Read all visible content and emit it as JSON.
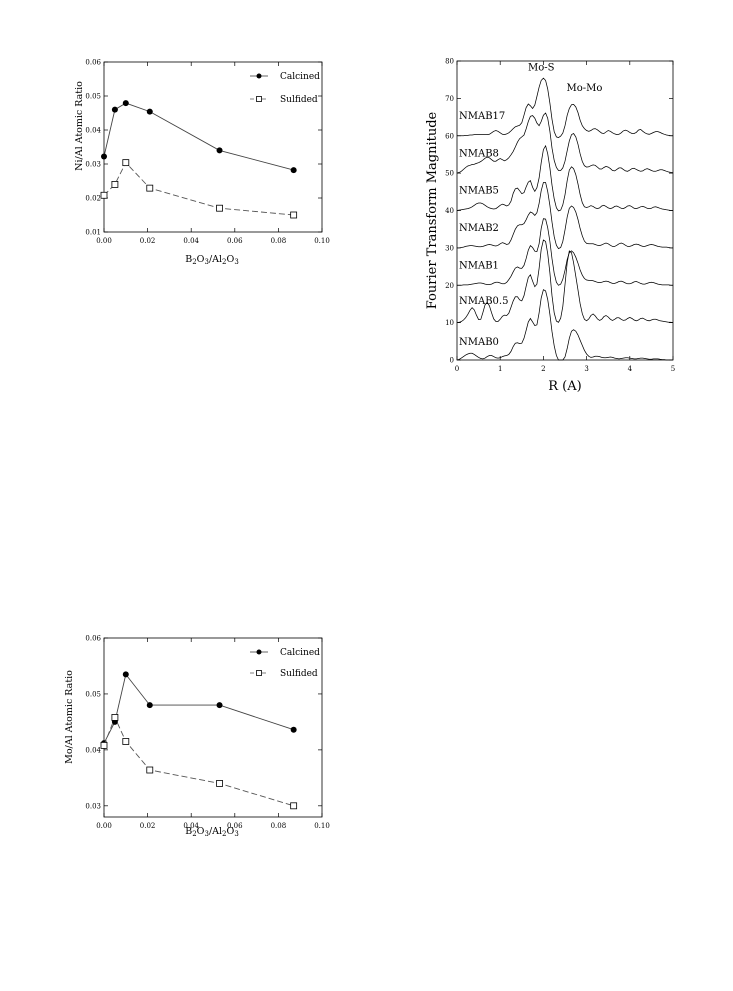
{
  "chart_data": [
    {
      "type": "line",
      "ylabel": "Ni/Al Atomic Ratio",
      "xlabel": {
        "main": "B",
        "sub1": "2",
        "mid1": "O",
        "sub2": "3",
        "mid2": "/Al",
        "sub3": "2",
        "mid3": "O",
        "sub4": "3"
      },
      "xlim": [
        0,
        0.1
      ],
      "ylim": [
        0.01,
        0.06
      ],
      "xticks": [
        "0.00",
        "0.02",
        "0.04",
        "0.06",
        "0.08",
        "0.10"
      ],
      "yticks": [
        "0.01",
        "0.02",
        "0.03",
        "0.04",
        "0.05",
        "0.06"
      ],
      "xtick_values": [
        0,
        0.02,
        0.04,
        0.06,
        0.08,
        0.1
      ],
      "ytick_values": [
        0.01,
        0.02,
        0.03,
        0.04,
        0.05,
        0.06
      ],
      "legend_position": "top-right",
      "series": [
        {
          "name": "Calcined",
          "marker": "filled-circle",
          "line": "solid",
          "x": [
            0.0,
            0.005,
            0.01,
            0.021,
            0.053,
            0.087
          ],
          "y": [
            0.0322,
            0.046,
            0.0479,
            0.0454,
            0.034,
            0.0282
          ]
        },
        {
          "name": "Sulfided",
          "marker": "open-square",
          "line": "dashed",
          "x": [
            0.0,
            0.005,
            0.01,
            0.021,
            0.053,
            0.087
          ],
          "y": [
            0.0208,
            0.024,
            0.0304,
            0.0229,
            0.017,
            0.015
          ]
        }
      ]
    },
    {
      "type": "line",
      "ylabel": "Fourier Transform Magnitude",
      "xlabel": "R (A)",
      "xlim": [
        0,
        5
      ],
      "ylim": [
        0,
        80
      ],
      "xticks": [
        "0",
        "1",
        "2",
        "3",
        "4",
        "5"
      ],
      "yticks": [
        "0",
        "10",
        "20",
        "30",
        "40",
        "50",
        "60",
        "70",
        "80"
      ],
      "xtick_values": [
        0,
        1,
        2,
        3,
        4,
        5
      ],
      "ytick_values": [
        0,
        10,
        20,
        30,
        40,
        50,
        60,
        70,
        80
      ],
      "annotations": [
        {
          "text": "Mo-S",
          "x": 1.95,
          "y": 77.5
        },
        {
          "text": "Mo-Mo",
          "x": 2.95,
          "y": 72
        }
      ],
      "x_sampling": {
        "start": 0,
        "end": 5,
        "step": 0.05
      },
      "series": [
        {
          "name": "NMAB17",
          "baseline": 60,
          "label_y": 64.5,
          "values": [
            60,
            60,
            60,
            60,
            60.1,
            60.1,
            60.2,
            60.2,
            60.3,
            60.3,
            60.3,
            60.3,
            60.3,
            60.3,
            60.3,
            60.4,
            60.8,
            61.2,
            61.4,
            61.2,
            60.8,
            60.4,
            60.3,
            60.5,
            60.8,
            61.3,
            61.9,
            62.4,
            62.6,
            62.8,
            63.5,
            65.5,
            67.5,
            68.5,
            68,
            67.3,
            68.2,
            70.5,
            73,
            74.8,
            75.4,
            74.8,
            72.5,
            68.7,
            64.4,
            61.1,
            59.7,
            59.5,
            59.9,
            60.7,
            62.7,
            65.5,
            67.3,
            68.3,
            68.4,
            67.7,
            66.2,
            64.2,
            62.7,
            61.9,
            61.4,
            61.2,
            61.4,
            61.8,
            61.9,
            61.6,
            61.1,
            60.7,
            60.6,
            61,
            61.4,
            61.2,
            60.8,
            60.5,
            60.3,
            60.4,
            60.8,
            61.3,
            61.5,
            61.3,
            60.9,
            60.6,
            60.6,
            60.9,
            61.5,
            61.7,
            61.2,
            60.8,
            60.5,
            60.4,
            60.6,
            60.9,
            61.1,
            61.1,
            60.9,
            60.6,
            60.4,
            60.2,
            60.1,
            60,
            60
          ]
        },
        {
          "name": "NMAB8",
          "baseline": 50,
          "label_y": 54.5,
          "values": [
            50,
            50.2,
            50.5,
            51,
            51.5,
            51.9,
            52.1,
            52.3,
            52.4,
            52.6,
            52.8,
            53.1,
            53.5,
            54,
            54.3,
            54.1,
            53.6,
            53.2,
            53.2,
            53.6,
            53.9,
            53.6,
            53.3,
            53.6,
            54.1,
            54.9,
            55.8,
            57,
            58.3,
            59.2,
            59.7,
            60.2,
            61.8,
            63.8,
            65.2,
            65.4,
            64.7,
            63.4,
            62.7,
            63.8,
            65.5,
            66.1,
            64.7,
            61.2,
            56.7,
            53.4,
            51.5,
            50.7,
            50.7,
            51.4,
            53.2,
            56,
            58.6,
            60.3,
            60.6,
            59.7,
            57.7,
            55.2,
            53.1,
            52,
            51.6,
            51.7,
            52,
            52.2,
            52.1,
            51.6,
            51.1,
            51.1,
            51.5,
            51.8,
            51.6,
            51.2,
            50.7,
            50.6,
            51,
            51.4,
            51.4,
            51,
            50.6,
            50.5,
            50.8,
            51.2,
            51.3,
            51,
            50.7,
            50.5,
            50.6,
            51,
            51.2,
            51,
            50.7,
            50.5,
            50.5,
            50.7,
            50.9,
            50.9,
            50.7,
            50.5,
            50.3,
            50.2,
            50.1
          ]
        },
        {
          "name": "NMAB5",
          "baseline": 40,
          "label_y": 44.5,
          "values": [
            40,
            40.1,
            40.2,
            40.3,
            40.4,
            40.5,
            40.7,
            41,
            41.4,
            41.8,
            42,
            42,
            41.8,
            41.4,
            41,
            40.7,
            40.5,
            40.4,
            40.5,
            40.9,
            41.4,
            41.7,
            41.5,
            41.2,
            41.5,
            42.5,
            44.6,
            45.8,
            46,
            45.3,
            44.5,
            44.8,
            46.3,
            47.6,
            48,
            46.2,
            45.1,
            46.1,
            48.7,
            52.8,
            56.3,
            57.3,
            55.2,
            51.4,
            46.8,
            43.1,
            40.7,
            39.9,
            40.1,
            41.5,
            44.2,
            48,
            50.8,
            51.7,
            51.2,
            49.6,
            47.1,
            44.3,
            42.1,
            41,
            40.8,
            41,
            41.3,
            41.1,
            40.7,
            40.5,
            40.7,
            41.2,
            41.4,
            41.1,
            40.7,
            40.5,
            40.7,
            41.1,
            41.2,
            40.9,
            40.6,
            40.5,
            40.8,
            41.2,
            41.3,
            41,
            40.6,
            40.5,
            40.7,
            41,
            41.1,
            40.9,
            40.6,
            40.5,
            40.6,
            40.9,
            41,
            40.8,
            40.6,
            40.4,
            40.3,
            40.2,
            40.1,
            40,
            40
          ]
        },
        {
          "name": "NMAB2",
          "baseline": 30,
          "label_y": 34.5,
          "values": [
            30,
            30,
            30.1,
            30.2,
            30.4,
            30.5,
            30.6,
            30.6,
            30.5,
            30.4,
            30.3,
            30.3,
            30.4,
            30.6,
            30.8,
            30.9,
            30.8,
            30.6,
            30.5,
            30.7,
            31.1,
            31.4,
            31.2,
            30.9,
            31.1,
            32.1,
            33.6,
            35,
            35.9,
            36.2,
            36.2,
            36.5,
            37.5,
            38.8,
            39.6,
            39.3,
            38.7,
            39.4,
            41.9,
            45.3,
            47.5,
            47.5,
            45.1,
            41.3,
            36.9,
            33,
            30.7,
            29.8,
            30.1,
            31.7,
            34.8,
            38.3,
            40.6,
            41.2,
            40.8,
            39.6,
            37.6,
            35.2,
            33.2,
            31.8,
            31.2,
            31.1,
            31.1,
            31.1,
            30.9,
            30.7,
            30.6,
            30.8,
            31.1,
            31.3,
            31.1,
            30.7,
            30.4,
            30.4,
            30.7,
            31.1,
            31.3,
            31.1,
            30.7,
            30.4,
            30.4,
            30.6,
            30.9,
            31,
            30.9,
            30.6,
            30.4,
            30.4,
            30.6,
            30.8,
            30.9,
            30.8,
            30.6,
            30.4,
            30.3,
            30.2,
            30.2,
            30.2,
            30.1,
            30,
            30
          ]
        },
        {
          "name": "NMAB1",
          "baseline": 20,
          "label_y": 24.5,
          "values": [
            20,
            20,
            20,
            20.1,
            20.1,
            20.1,
            20.2,
            20.3,
            20.4,
            20.5,
            20.6,
            20.6,
            20.5,
            20.3,
            20.2,
            20.2,
            20.3,
            20.6,
            20.8,
            20.8,
            20.6,
            20.4,
            20.4,
            20.8,
            21.5,
            22.4,
            23.6,
            24.6,
            24.9,
            24.6,
            24.5,
            25.3,
            27.1,
            29.4,
            30.6,
            30.1,
            29.1,
            29,
            31.1,
            35.2,
            37.8,
            37.7,
            35.4,
            31.7,
            27.1,
            23.2,
            20.8,
            20,
            20.3,
            21.6,
            24,
            26.9,
            28.7,
            29.2,
            28.7,
            27.5,
            25.9,
            24.1,
            22.7,
            21.8,
            21.4,
            21.3,
            21.3,
            21.2,
            21,
            20.8,
            20.7,
            20.8,
            21,
            21.1,
            21,
            20.7,
            20.5,
            20.5,
            20.7,
            21,
            21.1,
            20.9,
            20.6,
            20.4,
            20.4,
            20.6,
            20.9,
            21,
            20.8,
            20.5,
            20.3,
            20.3,
            20.5,
            20.7,
            20.8,
            20.7,
            20.5,
            20.3,
            20.2,
            20.1,
            20.1,
            20.1,
            20.1,
            20,
            20
          ]
        },
        {
          "name": "NMAB0.5",
          "baseline": 10,
          "label_y": 15,
          "values": [
            10,
            10.1,
            10.3,
            10.7,
            11.3,
            12.2,
            13.3,
            14,
            13.4,
            12,
            10.8,
            10.9,
            12.7,
            14.8,
            15.4,
            14.5,
            12.6,
            11,
            10.3,
            10.3,
            10.9,
            11.7,
            12,
            11.9,
            12.5,
            14.1,
            15.8,
            16.9,
            16.9,
            16.1,
            15.8,
            17.2,
            19.7,
            22.1,
            22.8,
            21.1,
            19.6,
            20.3,
            24.5,
            29.6,
            32.1,
            31.7,
            28.5,
            23.3,
            17.2,
            12.6,
            10.4,
            10.1,
            11.2,
            14.3,
            20.2,
            26.1,
            29.2,
            28.7,
            26,
            22.4,
            18.7,
            15.1,
            12.4,
            10.9,
            10.5,
            11,
            11.9,
            12.3,
            11.8,
            11,
            10.6,
            10.9,
            11.6,
            11.9,
            11.5,
            10.9,
            10.6,
            10.9,
            11.3,
            11.3,
            10.9,
            10.6,
            10.7,
            11.1,
            11.4,
            11.1,
            10.7,
            10.5,
            10.7,
            11.1,
            11.2,
            10.9,
            10.6,
            10.5,
            10.7,
            10.9,
            10.9,
            10.7,
            10.5,
            10.4,
            10.3,
            10.2,
            10.1,
            10.1,
            10
          ]
        },
        {
          "name": "NMAB0",
          "baseline": 0,
          "label_y": 4,
          "values": [
            0,
            0.2,
            0.5,
            0.9,
            1.3,
            1.6,
            1.8,
            1.8,
            1.5,
            1.1,
            0.7,
            0.4,
            0.3,
            0.5,
            0.9,
            1.2,
            1.2,
            0.9,
            0.6,
            0.5,
            0.6,
            0.9,
            1.1,
            1.2,
            1.5,
            2.3,
            3.6,
            4.5,
            4.6,
            4.4,
            4.5,
            5.8,
            7.9,
            10.2,
            11.1,
            10.2,
            9.2,
            9.4,
            12.6,
            16.6,
            18.8,
            18.5,
            16.2,
            12.2,
            7.6,
            3.8,
            1.2,
            0,
            0,
            0,
            0.8,
            3.1,
            5.8,
            7.7,
            8.1,
            7.7,
            6.7,
            5.3,
            3.9,
            2.6,
            1.6,
            1,
            0.7,
            0.8,
            1,
            1,
            0.9,
            0.7,
            0.6,
            0.6,
            0.7,
            0.8,
            0.7,
            0.5,
            0.4,
            0.3,
            0.4,
            0.5,
            0.6,
            0.6,
            0.5,
            0.4,
            0.3,
            0.3,
            0.4,
            0.5,
            0.5,
            0.4,
            0.3,
            0.2,
            0.2,
            0.3,
            0.3,
            0.3,
            0.2,
            0.1,
            0.1,
            0,
            0,
            0,
            0
          ]
        }
      ]
    },
    {
      "type": "line",
      "ylabel": "Mo/Al Atomic Ratio",
      "xlabel": {
        "main": "B",
        "sub1": "2",
        "mid1": "O",
        "sub2": "3",
        "mid2": "/Al",
        "sub3": "2",
        "mid3": "O",
        "sub4": "3"
      },
      "xlim": [
        0,
        0.1
      ],
      "ylim": [
        0.028,
        0.06
      ],
      "xticks": [
        "0.00",
        "0.02",
        "0.04",
        "0.06",
        "0.08",
        "0.10"
      ],
      "yticks": [
        "0.03",
        "0.04",
        "0.05",
        "0.06"
      ],
      "xtick_values": [
        0,
        0.02,
        0.04,
        0.06,
        0.08,
        0.1
      ],
      "ytick_values": [
        0.03,
        0.04,
        0.05,
        0.06
      ],
      "legend_position": "top-right",
      "series": [
        {
          "name": "Calcined",
          "marker": "filled-circle",
          "line": "solid",
          "x": [
            0.0,
            0.005,
            0.01,
            0.021,
            0.053,
            0.087
          ],
          "y": [
            0.0412,
            0.045,
            0.0535,
            0.048,
            0.048,
            0.0436
          ]
        },
        {
          "name": "Sulfided",
          "marker": "open-square",
          "line": "dashed",
          "x": [
            0.0,
            0.005,
            0.01,
            0.021,
            0.053,
            0.087
          ],
          "y": [
            0.0408,
            0.0458,
            0.0415,
            0.0364,
            0.034,
            0.03
          ]
        }
      ]
    }
  ]
}
